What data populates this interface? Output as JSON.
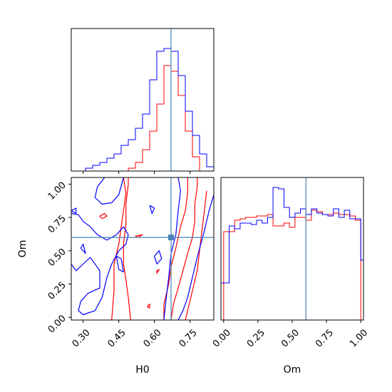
{
  "chart_data": {
    "type": "corner",
    "parameters": [
      "H0",
      "Om"
    ],
    "truth": {
      "H0": 0.67,
      "Om": 0.6
    },
    "colors": {
      "red_series": "#ff0000",
      "blue_series": "#0000ff",
      "truth": "#4682b4",
      "axes": "#000000"
    },
    "panels": [
      {
        "id": "hist_H0",
        "type": "step-histogram",
        "xlim": [
          0.25,
          0.85
        ],
        "bin_edges": [
          0.25,
          0.28,
          0.31,
          0.34,
          0.37,
          0.4,
          0.43,
          0.46,
          0.49,
          0.52,
          0.55,
          0.58,
          0.61,
          0.64,
          0.67,
          0.7,
          0.73,
          0.76,
          0.79,
          0.82,
          0.85
        ],
        "series": [
          {
            "color": "red",
            "values": [
              0,
              0,
              0,
              0,
              0,
              0,
              0,
              0,
              0.02,
              0.06,
              0.15,
              0.28,
              0.47,
              0.74,
              0.7,
              0.53,
              0.28,
              0.1,
              0,
              0
            ]
          },
          {
            "color": "blue",
            "values": [
              0,
              0,
              0.02,
              0.04,
              0.06,
              0.09,
              0.12,
              0.18,
              0.22,
              0.3,
              0.4,
              0.64,
              0.84,
              0.86,
              0.84,
              0.67,
              0.42,
              0.25,
              0.12,
              0.03
            ]
          }
        ],
        "vline": 0.67
      },
      {
        "id": "contour_H0_Om",
        "type": "contour",
        "xlim": [
          0.25,
          0.85
        ],
        "ylim": [
          -0.02,
          1.05
        ],
        "xlabel": "H0",
        "ylabel": "Om",
        "xticks": [
          0.3,
          0.45,
          0.6,
          0.75
        ],
        "xtick_labels": [
          "0.30",
          "0.45",
          "0.60",
          "0.75"
        ],
        "yticks": [
          0.0,
          0.25,
          0.5,
          0.75,
          1.0
        ],
        "ytick_labels": [
          "0.00",
          "0.25",
          "0.50",
          "0.75",
          "1.00"
        ],
        "crosshair": {
          "x": 0.67,
          "y": 0.6
        },
        "series": [
          {
            "color": "red",
            "lines": [
              [
                [
                  0.5,
                  -0.02
                ],
                [
                  0.49,
                  0.15
                ],
                [
                  0.48,
                  0.28
                ],
                [
                  0.47,
                  0.4
                ],
                [
                  0.47,
                  0.55
                ],
                [
                  0.48,
                  0.7
                ],
                [
                  0.48,
                  0.85
                ],
                [
                  0.49,
                  1.0
                ],
                [
                  0.49,
                  1.05
                ]
              ],
              [
                [
                  0.42,
                  -0.02
                ],
                [
                  0.43,
                  0.2
                ],
                [
                  0.43,
                  0.4
                ],
                [
                  0.45,
                  0.55
                ],
                [
                  0.46,
                  0.68
                ],
                [
                  0.47,
                  0.8
                ],
                [
                  0.48,
                  0.93
                ],
                [
                  0.47,
                  1.05
                ]
              ],
              [
                [
                  0.67,
                  -0.02
                ],
                [
                  0.68,
                  0.1
                ],
                [
                  0.7,
                  0.22
                ],
                [
                  0.72,
                  0.35
                ],
                [
                  0.74,
                  0.48
                ],
                [
                  0.76,
                  0.6
                ],
                [
                  0.77,
                  0.72
                ],
                [
                  0.77,
                  0.85
                ],
                [
                  0.78,
                  0.98
                ],
                [
                  0.78,
                  1.05
                ]
              ],
              [
                [
                  0.64,
                  -0.02
                ],
                [
                  0.64,
                  0.1
                ],
                [
                  0.66,
                  0.25
                ],
                [
                  0.67,
                  0.38
                ],
                [
                  0.69,
                  0.52
                ],
                [
                  0.71,
                  0.68
                ],
                [
                  0.73,
                  0.8
                ],
                [
                  0.74,
                  0.93
                ],
                [
                  0.74,
                  1.05
                ]
              ],
              [
                [
                  0.82,
                  0.95
                ],
                [
                  0.81,
                  0.8
                ],
                [
                  0.8,
                  0.65
                ],
                [
                  0.79,
                  0.5
                ],
                [
                  0.78,
                  0.35
                ],
                [
                  0.76,
                  0.2
                ],
                [
                  0.74,
                  0.05
                ],
                [
                  0.73,
                  -0.02
                ]
              ],
              [
                [
                  0.38,
                  0.74
                ],
                [
                  0.37,
                  0.76
                ],
                [
                  0.39,
                  0.78
                ],
                [
                  0.4,
                  0.76
                ],
                [
                  0.38,
                  0.74
                ]
              ],
              [
                [
                  0.61,
                  0.33
                ],
                [
                  0.61,
                  0.35
                ],
                [
                  0.62,
                  0.36
                ],
                [
                  0.61,
                  0.33
                ]
              ],
              [
                [
                  0.58,
                  0.07
                ],
                [
                  0.57,
                  0.08
                ],
                [
                  0.58,
                  0.1
                ],
                [
                  0.58,
                  0.07
                ]
              ],
              [
                [
                  0.53,
                  0.6
                ],
                [
                  0.52,
                  0.61
                ],
                [
                  0.55,
                  0.62
                ],
                [
                  0.53,
                  0.6
                ]
              ]
            ]
          },
          {
            "color": "blue",
            "lines": [
              [
                [
                  0.39,
                  1.05
                ],
                [
                  0.36,
                  0.98
                ],
                [
                  0.35,
                  0.9
                ],
                [
                  0.38,
                  0.85
                ],
                [
                  0.42,
                  0.86
                ],
                [
                  0.45,
                  0.92
                ],
                [
                  0.47,
                  1.05
                ]
              ],
              [
                [
                  0.25,
                  0.78
                ],
                [
                  0.28,
                  0.77
                ],
                [
                  0.3,
                  0.72
                ],
                [
                  0.33,
                  0.68
                ],
                [
                  0.36,
                  0.62
                ],
                [
                  0.4,
                  0.58
                ],
                [
                  0.44,
                  0.62
                ],
                [
                  0.47,
                  0.68
                ],
                [
                  0.49,
                  0.62
                ],
                [
                  0.48,
                  0.55
                ],
                [
                  0.45,
                  0.5
                ],
                [
                  0.42,
                  0.4
                ],
                [
                  0.4,
                  0.3
                ],
                [
                  0.38,
                  0.15
                ],
                [
                  0.35,
                  0.05
                ],
                [
                  0.3,
                  0.02
                ],
                [
                  0.28,
                  0.05
                ],
                [
                  0.29,
                  0.12
                ],
                [
                  0.32,
                  0.18
                ],
                [
                  0.37,
                  0.22
                ],
                [
                  0.37,
                  0.35
                ],
                [
                  0.33,
                  0.45
                ],
                [
                  0.3,
                  0.4
                ],
                [
                  0.27,
                  0.35
                ],
                [
                  0.25,
                  0.4
                ]
              ],
              [
                [
                  0.47,
                  0.34
                ],
                [
                  0.46,
                  0.44
                ],
                [
                  0.44,
                  0.46
                ],
                [
                  0.45,
                  0.36
                ],
                [
                  0.47,
                  0.34
                ]
              ],
              [
                [
                  0.29,
                  0.52
                ],
                [
                  0.31,
                  0.48
                ],
                [
                  0.3,
                  0.55
                ],
                [
                  0.29,
                  0.52
                ]
              ],
              [
                [
                  0.25,
                  0.8
                ],
                [
                  0.27,
                  0.82
                ],
                [
                  0.27,
                  0.78
                ],
                [
                  0.25,
                  0.8
                ]
              ],
              [
                [
                  0.7,
                  1.05
                ],
                [
                  0.71,
                  0.95
                ],
                [
                  0.7,
                  0.8
                ],
                [
                  0.69,
                  0.62
                ],
                [
                  0.67,
                  0.48
                ],
                [
                  0.66,
                  0.3
                ],
                [
                  0.65,
                  0.15
                ],
                [
                  0.64,
                  -0.02
                ]
              ],
              [
                [
                  0.85,
                  0.92
                ],
                [
                  0.83,
                  0.8
                ],
                [
                  0.81,
                  0.65
                ],
                [
                  0.78,
                  0.45
                ],
                [
                  0.76,
                  0.3
                ],
                [
                  0.74,
                  0.15
                ],
                [
                  0.72,
                  0.05
                ],
                [
                  0.7,
                  -0.02
                ]
              ],
              [
                [
                  0.61,
                  0.4
                ],
                [
                  0.6,
                  0.46
                ],
                [
                  0.62,
                  0.5
                ],
                [
                  0.63,
                  0.44
                ],
                [
                  0.61,
                  0.4
                ]
              ],
              [
                [
                  0.58,
                  0.84
                ],
                [
                  0.6,
                  0.82
                ],
                [
                  0.59,
                  0.78
                ],
                [
                  0.58,
                  0.84
                ]
              ]
            ]
          }
        ]
      },
      {
        "id": "hist_Om",
        "type": "step-histogram",
        "xlim": [
          -0.02,
          1.02
        ],
        "xlabel": "Om",
        "xticks": [
          0.0,
          0.25,
          0.5,
          0.75,
          1.0
        ],
        "xtick_labels": [
          "0.00",
          "0.25",
          "0.50",
          "0.75",
          "1.00"
        ],
        "bin_edges": [
          -0.02,
          0.0,
          0.04,
          0.08,
          0.12,
          0.16,
          0.2,
          0.24,
          0.28,
          0.32,
          0.36,
          0.4,
          0.44,
          0.48,
          0.52,
          0.56,
          0.6,
          0.64,
          0.68,
          0.72,
          0.76,
          0.8,
          0.84,
          0.88,
          0.92,
          0.96,
          1.0,
          1.02
        ],
        "series": [
          {
            "color": "red",
            "values": [
              0,
              0.62,
              0.62,
              0.7,
              0.71,
              0.72,
              0.72,
              0.73,
              0.73,
              0.74,
              0.66,
              0.66,
              0.68,
              0.65,
              0.72,
              0.72,
              0.7,
              0.77,
              0.76,
              0.74,
              0.74,
              0.75,
              0.74,
              0.74,
              0.73,
              0.7,
              0
            ]
          },
          {
            "color": "blue",
            "values": [
              0.26,
              0.26,
              0.66,
              0.64,
              0.68,
              0.68,
              0.67,
              0.7,
              0.68,
              0.72,
              0.93,
              0.92,
              0.79,
              0.72,
              0.75,
              0.78,
              0.74,
              0.78,
              0.75,
              0.74,
              0.73,
              0.78,
              0.72,
              0.77,
              0.71,
              0.71,
              0.42
            ]
          }
        ],
        "vline": 0.6
      }
    ]
  }
}
